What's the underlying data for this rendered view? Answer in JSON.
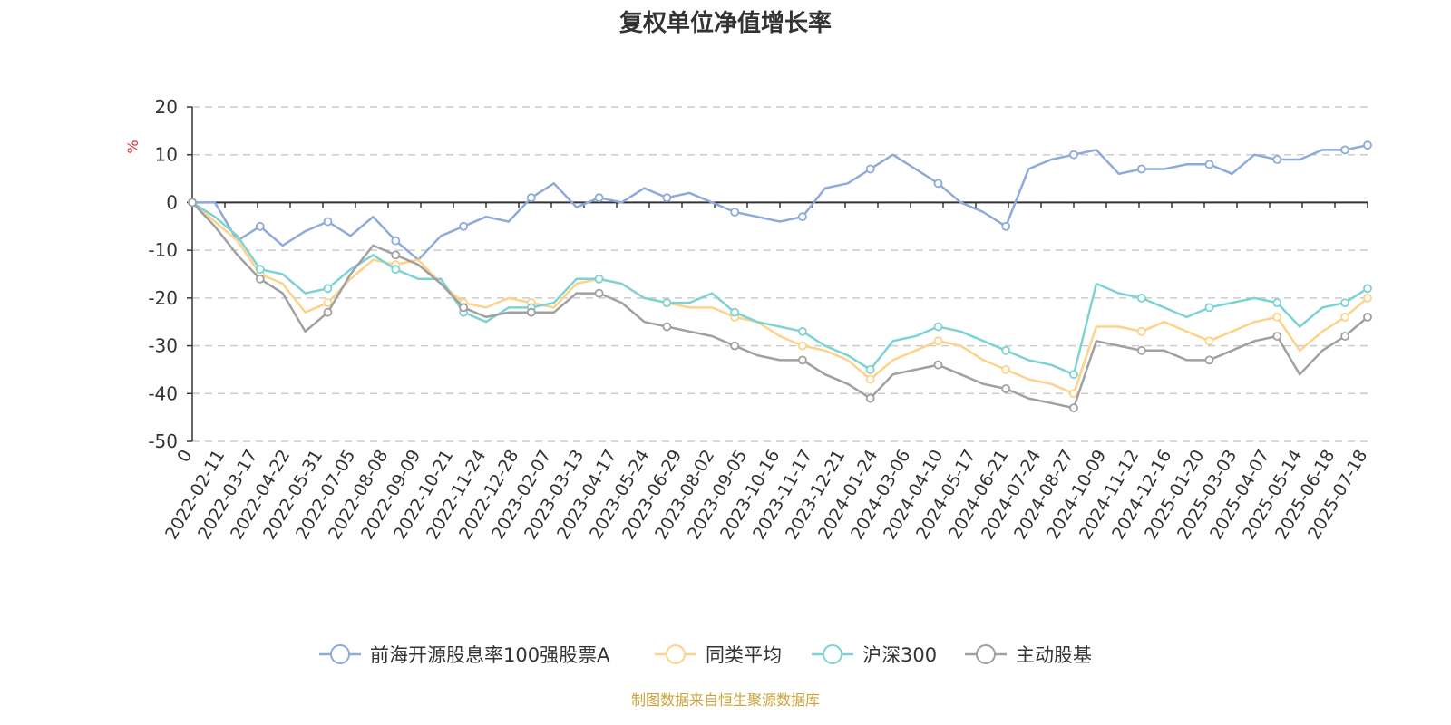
{
  "chart_data": {
    "type": "line",
    "title": "复权单位净值增长率",
    "ylabel": "%",
    "ylim": [
      -50,
      20
    ],
    "yticks": [
      20,
      10,
      0,
      -10,
      -20,
      -30,
      -40,
      -50
    ],
    "grid": true,
    "legend_position": "bottom",
    "source_note": "制图数据来自恒生聚源数据库",
    "x_ticks": [
      "0",
      "2022-02-11",
      "2022-03-17",
      "2022-04-22",
      "2022-05-31",
      "2022-07-05",
      "2022-08-08",
      "2022-09-09",
      "2022-10-21",
      "2022-11-24",
      "2022-12-28",
      "2023-02-07",
      "2023-03-13",
      "2023-04-17",
      "2023-05-24",
      "2023-06-29",
      "2023-08-02",
      "2023-09-05",
      "2023-10-16",
      "2023-11-17",
      "2023-12-21",
      "2024-01-24",
      "2024-03-06",
      "2024-04-10",
      "2024-05-17",
      "2024-06-21",
      "2024-07-24",
      "2024-08-27",
      "2024-10-09",
      "2024-11-12",
      "2024-12-16",
      "2025-01-20",
      "2025-03-03",
      "2025-04-07",
      "2025-05-14",
      "2025-06-18",
      "2025-07-18"
    ],
    "series": [
      {
        "name": "前海开源股息率100强股票A",
        "color": "#8eaadb",
        "values": [
          0,
          0,
          -8,
          -5,
          -9,
          -6,
          -4,
          -7,
          -3,
          -8,
          -12,
          -7,
          -5,
          -3,
          -4,
          1,
          4,
          -1,
          1,
          0,
          3,
          1,
          2,
          0,
          -2,
          -3,
          -4,
          -3,
          3,
          4,
          7,
          10,
          7,
          4,
          0,
          -2,
          -5,
          7,
          9,
          10,
          11,
          6,
          7,
          7,
          8,
          8,
          6,
          10,
          9,
          9,
          11,
          11,
          12
        ]
      },
      {
        "name": "同类平均",
        "color": "#fdd28a",
        "values": [
          0,
          -4,
          -8,
          -15,
          -17,
          -23,
          -21,
          -16,
          -12,
          -13,
          -12,
          -17,
          -21,
          -22,
          -20,
          -21,
          -22,
          -17,
          -16,
          -17,
          -20,
          -21,
          -22,
          -22,
          -24,
          -25,
          -28,
          -30,
          -31,
          -33,
          -37,
          -33,
          -31,
          -29,
          -30,
          -33,
          -35,
          -37,
          -38,
          -40,
          -26,
          -26,
          -27,
          -25,
          -27,
          -29,
          -27,
          -25,
          -24,
          -31,
          -27,
          -24,
          -20
        ]
      },
      {
        "name": "沪深300",
        "color": "#7dd3d3",
        "values": [
          0,
          -3,
          -7,
          -14,
          -15,
          -19,
          -18,
          -14,
          -11,
          -14,
          -16,
          -16,
          -23,
          -25,
          -22,
          -22,
          -21,
          -16,
          -16,
          -17,
          -20,
          -21,
          -21,
          -19,
          -23,
          -25,
          -26,
          -27,
          -30,
          -32,
          -35,
          -29,
          -28,
          -26,
          -27,
          -29,
          -31,
          -33,
          -34,
          -36,
          -17,
          -19,
          -20,
          -22,
          -24,
          -22,
          -21,
          -20,
          -21,
          -26,
          -22,
          -21,
          -18
        ]
      },
      {
        "name": "主动股基",
        "color": "#a0a0a0",
        "values": [
          0,
          -5,
          -11,
          -16,
          -19,
          -27,
          -23,
          -15,
          -9,
          -11,
          -13,
          -17,
          -22,
          -24,
          -23,
          -23,
          -23,
          -19,
          -19,
          -21,
          -25,
          -26,
          -27,
          -28,
          -30,
          -32,
          -33,
          -33,
          -36,
          -38,
          -41,
          -36,
          -35,
          -34,
          -36,
          -38,
          -39,
          -41,
          -42,
          -43,
          -29,
          -30,
          -31,
          -31,
          -33,
          -33,
          -31,
          -29,
          -28,
          -36,
          -31,
          -28,
          -24
        ]
      }
    ]
  }
}
